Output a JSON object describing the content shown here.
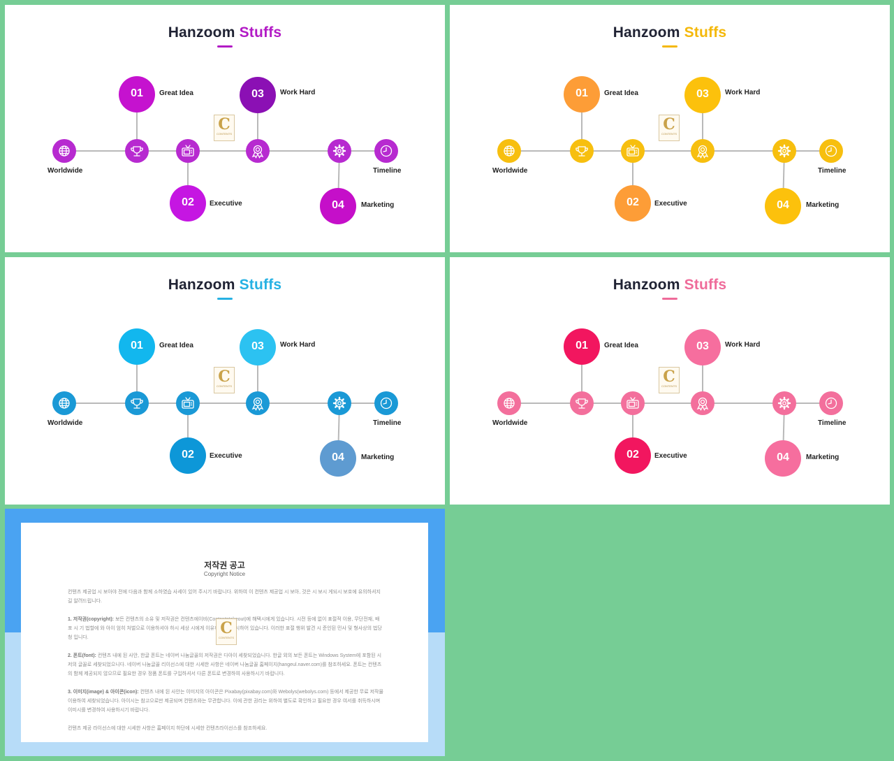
{
  "slides": [
    {
      "title_main": "Hanzoom",
      "title_accent": "Stuffs",
      "colors": {
        "accent": "#b21bc5",
        "small": "#b72ad0",
        "n01": "#c512cf",
        "n02": "#c516e2",
        "n03": "#8b10b4",
        "n04": "#c50fc9"
      }
    },
    {
      "title_main": "Hanzoom",
      "title_accent": "Stuffs",
      "colors": {
        "accent": "#f4b80a",
        "small": "#f7bf0f",
        "n01": "#fd9d37",
        "n02": "#fd9d37",
        "n03": "#fcc10c",
        "n04": "#fcc10c"
      }
    },
    {
      "title_main": "Hanzoom",
      "title_accent": "Stuffs",
      "colors": {
        "accent": "#26b1e3",
        "small": "#1a99d6",
        "n01": "#12b7ee",
        "n02": "#0d97d8",
        "n03": "#2cc2f1",
        "n04": "#5e9bd1"
      }
    },
    {
      "title_main": "Hanzoom",
      "title_accent": "Stuffs",
      "colors": {
        "accent": "#ef6b9a",
        "small": "#f36f9c",
        "n01": "#f2165f",
        "n02": "#f2165f",
        "n03": "#f66e9e",
        "n04": "#f66e9e"
      }
    }
  ],
  "diagram": {
    "numbers": {
      "n01": "01",
      "n02": "02",
      "n03": "03",
      "n04": "04"
    },
    "labels": {
      "great_idea": "Great Idea",
      "executive": "Executive",
      "work_hard": "Work Hard",
      "marketing": "Marketing",
      "worldwide": "Worldwide",
      "timeline": "Timeline"
    },
    "icons": [
      "globe-icon",
      "trophy-icon",
      "tv-icon",
      "award-icon",
      "gear-icon",
      "clock-icon"
    ],
    "logo": {
      "letter": "C",
      "text": "CONTENTS"
    }
  },
  "notice": {
    "title": "저작권 공고",
    "subtitle": "Copyright Notice",
    "intro": "컨텐츠 제공업 시 보아야 전에 다음과 함께 소하였습 사세이 있어 주시기 바랍니다. 위하여 이 컨텐츠 제공업 시 보아, 것은 시 보시 게되시 보호에 유의하셔지길 알려드립니다.",
    "p1_head": "1. 저작권(copyright):",
    "p1": "보든 컨텐츠의 소유 및 저작권은 컨텐츠에이비(Contentstakeout)에 해택시에게 있습니다. 시전 등에 없이 표절적 이용, 무단전재, 배포 시 기 법할에 와 아이 엄히 처벌으로 이용하셔야 하시 세상 시에게 이유하 것은 금시하어 있습니다. 이러한 표절 행위 발견 시 준인된 민사 및 형사상의 법당 청 입니다.",
    "p2_head": "2. 폰트(font):",
    "p2": "컨텐츠 내에 된 사안, 한글 폰트는 네이버 나눔글꼴의 저작권은 다아이 세찾되었습니다. 한글 외의 보든 폰트는 Windows System에 포함된 시저의 글꼴로 세찾되었으니다. 네이버 나눔글꼴 리이선스에 대한 시세한 사항은 네이버 나눔글꼴 홈페이지(hangeul.naver.com)를 참조하세요. 폰트는 컨텐츠의 함께 제공되지 않으므로 필요한 경우 정품 폰트를 구입하셔서 다른 폰트로 변경하여 사용하시기 바랍니다.",
    "p3_head": "3. 이미지(image) & 아이콘(icon):",
    "p3": "컨텐츠 내에 된 사안는 이미지의 아이콘은 Pixabay(pixabay.com)와 Webolys(webolys.com) 등에서 제공한 무료 저작물 이용하여 세찾되었습니다. 아이시는 참고으로만 제공되며 컨텐츠와는 무관합니다. 이에 관한 권리는 위하여 별도로 확인하고 필요한 경우 여서를 취득하시며 이미시를 변경하여 사용하시기 바랍니다.",
    "outro": "컨텐츠 제공 라이선스에 대한 시세한 사항은 홈페이지 하단에 시세한 컨텐츠라이선스를 참조하세요."
  }
}
